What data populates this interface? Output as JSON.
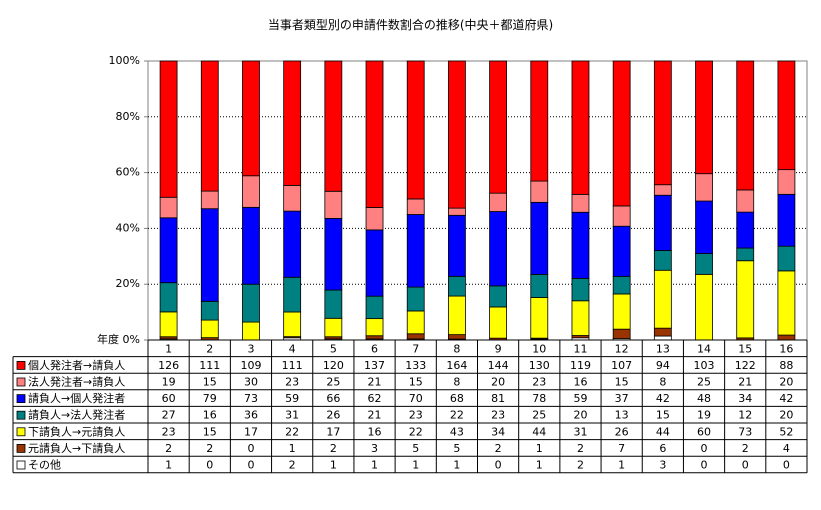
{
  "chart_data": {
    "type": "bar",
    "stacked": "percent",
    "title": "当事者類型別の申請件数割合の推移(中央＋都道府県)",
    "xlabel": "年度",
    "ylabel": "",
    "ylim": [
      0,
      100
    ],
    "y_ticks": [
      "0%",
      "20%",
      "40%",
      "60%",
      "80%",
      "100%"
    ],
    "grid": true,
    "legend": "data-table-left",
    "categories": [
      "1",
      "2",
      "3",
      "4",
      "5",
      "6",
      "7",
      "8",
      "9",
      "10",
      "11",
      "12",
      "13",
      "14",
      "15",
      "16"
    ],
    "series": [
      {
        "name": "個人発注者→請負人",
        "color": "#ff0000",
        "values": [
          126,
          111,
          109,
          111,
          120,
          137,
          133,
          164,
          144,
          130,
          119,
          107,
          94,
          103,
          122,
          88
        ]
      },
      {
        "name": "法人発注者→請負人",
        "color": "#ff8080",
        "values": [
          19,
          15,
          30,
          23,
          25,
          21,
          15,
          8,
          20,
          23,
          16,
          15,
          8,
          25,
          21,
          20
        ]
      },
      {
        "name": "請負人→個人発注者",
        "color": "#0000ff",
        "values": [
          60,
          79,
          73,
          59,
          66,
          62,
          70,
          68,
          81,
          78,
          59,
          37,
          42,
          48,
          34,
          42
        ]
      },
      {
        "name": "請負人→法人発注者",
        "color": "#008080",
        "values": [
          27,
          16,
          36,
          31,
          26,
          21,
          23,
          22,
          23,
          25,
          20,
          13,
          15,
          19,
          12,
          20
        ]
      },
      {
        "name": "下請負人→元請負人",
        "color": "#ffff00",
        "values": [
          23,
          15,
          17,
          22,
          17,
          16,
          22,
          43,
          34,
          44,
          31,
          26,
          44,
          60,
          73,
          52
        ]
      },
      {
        "name": "元請負人→下請負人",
        "color": "#993300",
        "values": [
          2,
          2,
          0,
          1,
          2,
          3,
          5,
          5,
          2,
          1,
          2,
          7,
          6,
          0,
          2,
          4
        ]
      },
      {
        "name": "その他",
        "color": "#ffffff",
        "values": [
          1,
          0,
          0,
          2,
          1,
          1,
          1,
          1,
          0,
          1,
          2,
          1,
          3,
          0,
          0,
          0
        ]
      }
    ]
  }
}
